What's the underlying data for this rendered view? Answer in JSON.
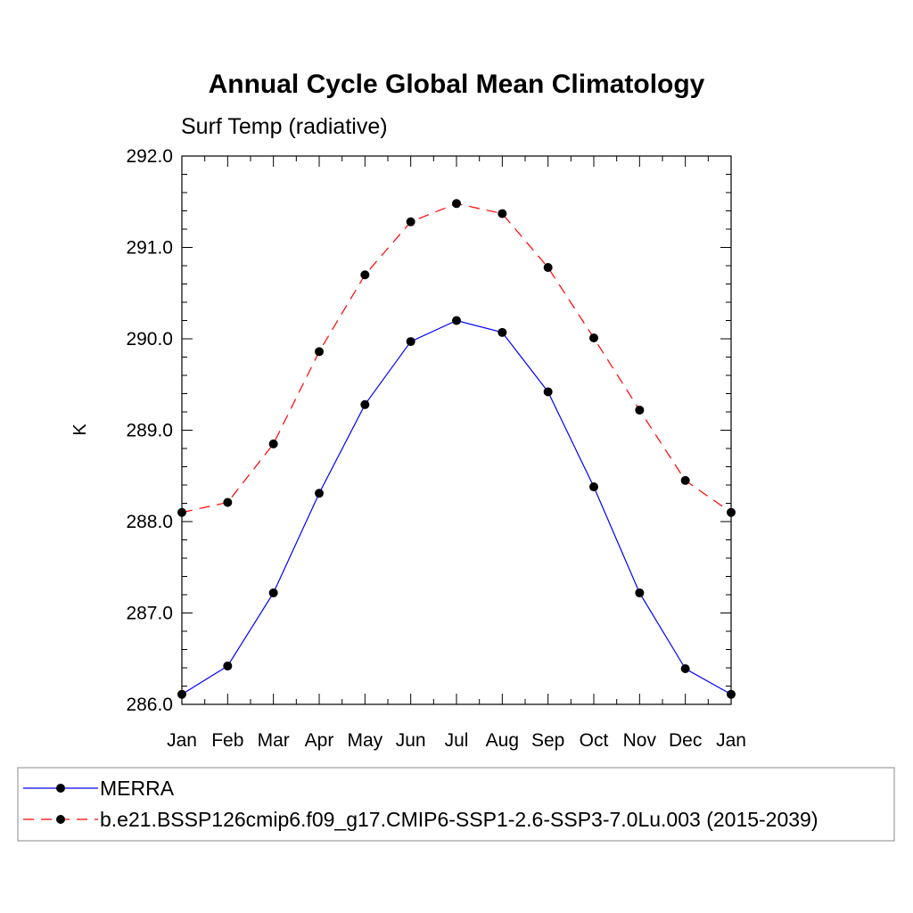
{
  "chart_data": {
    "type": "line",
    "title": "Annual Cycle Global Mean Climatology",
    "subtitle": "Surf Temp (radiative)",
    "ylabel": "K",
    "xlabel": "",
    "categories": [
      "Jan",
      "Feb",
      "Mar",
      "Apr",
      "May",
      "Jun",
      "Jul",
      "Aug",
      "Sep",
      "Oct",
      "Nov",
      "Dec",
      "Jan"
    ],
    "ylim": [
      286.0,
      292.0
    ],
    "yticks": [
      "286.0",
      "287.0",
      "288.0",
      "289.0",
      "290.0",
      "291.0",
      "292.0"
    ],
    "grid": false,
    "legend_position": "bottom",
    "series": [
      {
        "name": "MERRA",
        "color": "#0000ff",
        "dash": "solid",
        "values": [
          286.11,
          286.42,
          287.22,
          288.31,
          289.28,
          289.97,
          290.2,
          290.07,
          289.42,
          288.38,
          287.22,
          286.39,
          286.11
        ]
      },
      {
        "name": "b.e21.BSSP126cmip6.f09_g17.CMIP6-SSP1-2.6-SSP3-7.0Lu.003 (2015-2039)",
        "color": "#ff0000",
        "dash": "dashed",
        "values": [
          288.1,
          288.21,
          288.85,
          289.86,
          290.7,
          291.28,
          291.48,
          291.37,
          290.78,
          290.01,
          289.22,
          288.45,
          288.1
        ]
      }
    ]
  }
}
